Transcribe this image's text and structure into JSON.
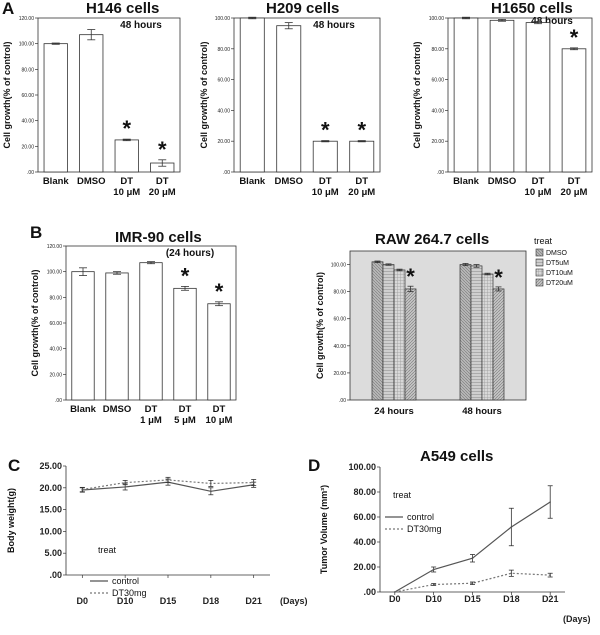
{
  "panels": {
    "A": "A",
    "B": "B",
    "C": "C",
    "D": "D"
  },
  "chart_data": [
    {
      "id": "h146",
      "type": "bar",
      "title": "H146 cells",
      "note": "48 hours",
      "ylabel": "Cell growth(% of control)",
      "ylim": [
        0,
        120
      ],
      "yticks": [
        "120.00",
        "100.00",
        "80.00",
        "60.00",
        "40.00",
        "20.00",
        ".00"
      ],
      "categories": [
        [
          "Blank"
        ],
        [
          "DMSO"
        ],
        [
          "DT",
          "10 μM"
        ],
        [
          "DT",
          "20 μM"
        ]
      ],
      "values": [
        100,
        107,
        25,
        7
      ],
      "errors": [
        0.5,
        4,
        0.6,
        2.5
      ],
      "significant": [
        false,
        false,
        true,
        true
      ],
      "star": "*"
    },
    {
      "id": "h209",
      "type": "bar",
      "title": "H209 cells",
      "note": "48 hours",
      "ylabel": "Cell growth(% of control)",
      "ylim": [
        0,
        100
      ],
      "yticks": [
        "100.00",
        "80.00",
        "60.00",
        "40.00",
        "20.00",
        ".00"
      ],
      "categories": [
        [
          "Blank"
        ],
        [
          "DMSO"
        ],
        [
          "DT",
          "10 μM"
        ],
        [
          "DT",
          "20 μM"
        ]
      ],
      "values": [
        100,
        95,
        20,
        20
      ],
      "errors": [
        0.5,
        2,
        0.4,
        0.4
      ],
      "significant": [
        false,
        false,
        true,
        true
      ],
      "star": "*"
    },
    {
      "id": "h1650",
      "type": "bar",
      "title": "H1650 cells",
      "note": "48 hours",
      "ylabel": "Cell growth(% of control)",
      "ylim": [
        0,
        100
      ],
      "yticks": [
        "100.00",
        "80.00",
        "60.00",
        "40.00",
        "20.00",
        ".00"
      ],
      "categories": [
        [
          "Blank"
        ],
        [
          "DMSO"
        ],
        [
          "DT",
          "10 μM"
        ],
        [
          "DT",
          "20 μM"
        ]
      ],
      "values": [
        100,
        98.5,
        97,
        80
      ],
      "errors": [
        0.5,
        0.6,
        0.7,
        0.6
      ],
      "significant": [
        false,
        false,
        false,
        true
      ],
      "star": "*"
    },
    {
      "id": "imr90",
      "type": "bar",
      "title": "IMR-90 cells",
      "note": "(24 hours)",
      "ylabel": "Cell growth(% of control)",
      "ylim": [
        0,
        120
      ],
      "yticks": [
        "120.00",
        "100.00",
        "80.00",
        "60.00",
        "40.00",
        "20.00",
        ".00"
      ],
      "categories": [
        [
          "Blank"
        ],
        [
          "DMSO"
        ],
        [
          "DT",
          "1 μM"
        ],
        [
          "DT",
          "5 μM"
        ],
        [
          "DT",
          "10 μM"
        ]
      ],
      "values": [
        100,
        99,
        107,
        87,
        75
      ],
      "errors": [
        3,
        1,
        0.8,
        1.5,
        1.5
      ],
      "significant": [
        false,
        false,
        false,
        true,
        true
      ],
      "star": "*"
    },
    {
      "id": "raw264",
      "type": "bar",
      "title": "RAW  264.7 cells",
      "ylabel": "Cell growth(% of control)",
      "ylim": [
        0,
        110
      ],
      "yticks": [
        "100.00",
        "80.00",
        "60.00",
        "40.00",
        "20.00",
        ".00"
      ],
      "categories": [
        "24 hours",
        "48 hours"
      ],
      "legend_title": "treat",
      "series": [
        {
          "name": "DMSO",
          "values": [
            102,
            100
          ],
          "errors": [
            0.6,
            0.8
          ]
        },
        {
          "name": "DT5uM",
          "values": [
            100,
            99
          ],
          "errors": [
            0.5,
            1
          ]
        },
        {
          "name": "DT10uM",
          "values": [
            96,
            93
          ],
          "errors": [
            0.6,
            0.6
          ]
        },
        {
          "name": "DT20uM",
          "values": [
            82,
            82
          ],
          "errors": [
            2,
            1.5
          ]
        }
      ],
      "significant_series": [
        3
      ],
      "star": "*"
    },
    {
      "id": "bodyweight",
      "type": "line",
      "ylabel": "Body weight(g)",
      "xlabel": "(Days)",
      "ylim": [
        0,
        25
      ],
      "yticks": [
        "25.00",
        "20.00",
        "15.00",
        "10.00",
        "5.00",
        ".00"
      ],
      "categories": [
        "D0",
        "D10",
        "D15",
        "D18",
        "D21"
      ],
      "legend_title": "treat",
      "series": [
        {
          "name": "control",
          "style": "solid",
          "values": [
            19.5,
            20.2,
            21.3,
            19.2,
            20.7
          ],
          "errors": [
            0.5,
            0.7,
            0.7,
            0.8,
            0.6
          ]
        },
        {
          "name": "DT30mg",
          "style": "dashed",
          "values": [
            19.6,
            21.2,
            21.8,
            21.0,
            21.2
          ],
          "errors": [
            0.5,
            0.5,
            0.6,
            0.7,
            0.7
          ]
        }
      ]
    },
    {
      "id": "a549",
      "type": "line",
      "title": "A549 cells",
      "ylabel": "Tumor Volume (mm³)",
      "xlabel": "(Days)",
      "ylim": [
        0,
        100
      ],
      "yticks": [
        "100.00",
        "80.00",
        "60.00",
        "40.00",
        "20.00",
        ".00"
      ],
      "categories": [
        "D0",
        "D10",
        "D15",
        "D18",
        "D21"
      ],
      "legend_title": "treat",
      "series": [
        {
          "name": "control",
          "style": "solid",
          "values": [
            0,
            18,
            27,
            52,
            72
          ],
          "errors": [
            0,
            2,
            3,
            15,
            13
          ]
        },
        {
          "name": "DT30mg",
          "style": "dashed",
          "values": [
            0,
            6,
            7,
            15,
            13.5
          ],
          "errors": [
            0,
            0.8,
            1,
            2.5,
            1.5
          ]
        }
      ]
    }
  ]
}
